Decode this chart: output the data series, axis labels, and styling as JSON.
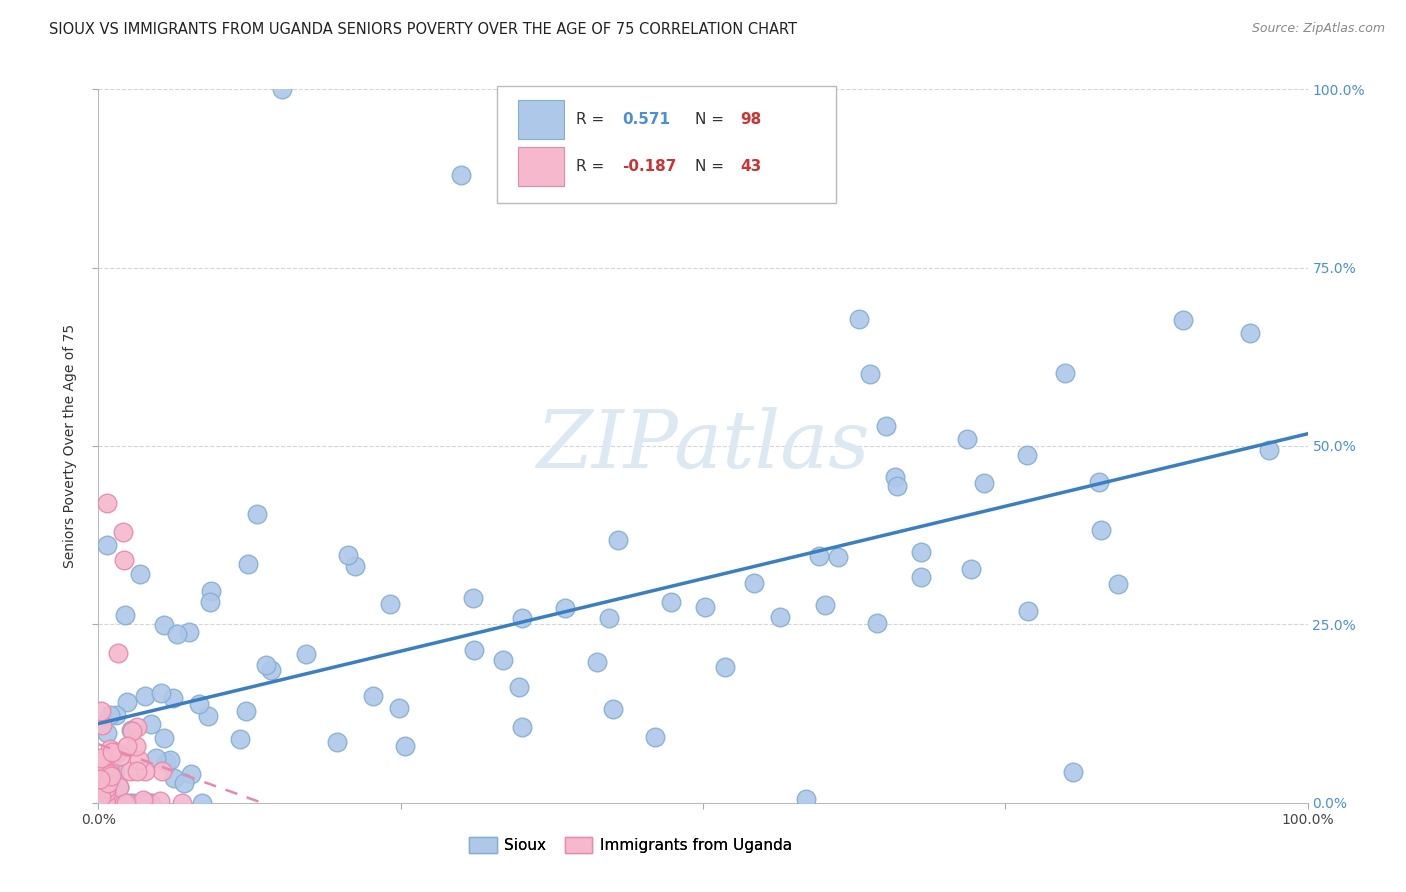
{
  "title": "SIOUX VS IMMIGRANTS FROM UGANDA SENIORS POVERTY OVER THE AGE OF 75 CORRELATION CHART",
  "source": "Source: ZipAtlas.com",
  "ylabel": "Seniors Poverty Over the Age of 75",
  "sioux_R": 0.571,
  "sioux_N": 98,
  "uganda_R": -0.187,
  "uganda_N": 43,
  "legend_labels": [
    "Sioux",
    "Immigrants from Uganda"
  ],
  "sioux_color": "#adc8e8",
  "sioux_edge_color": "#85aed4",
  "uganda_color": "#f5b8cc",
  "uganda_edge_color": "#e888aa",
  "sioux_line_color": "#3a7fc1",
  "uganda_line_color": "#e888aa",
  "watermark_color": "#dce8f2",
  "grid_color": "#cccccc",
  "background_color": "#ffffff",
  "title_fontsize": 10.5,
  "axis_label_fontsize": 10,
  "tick_fontsize": 10,
  "right_tick_color": "#4a90d9",
  "legend_R_color": "#4a90d9",
  "legend_N_color": "#cc3333"
}
